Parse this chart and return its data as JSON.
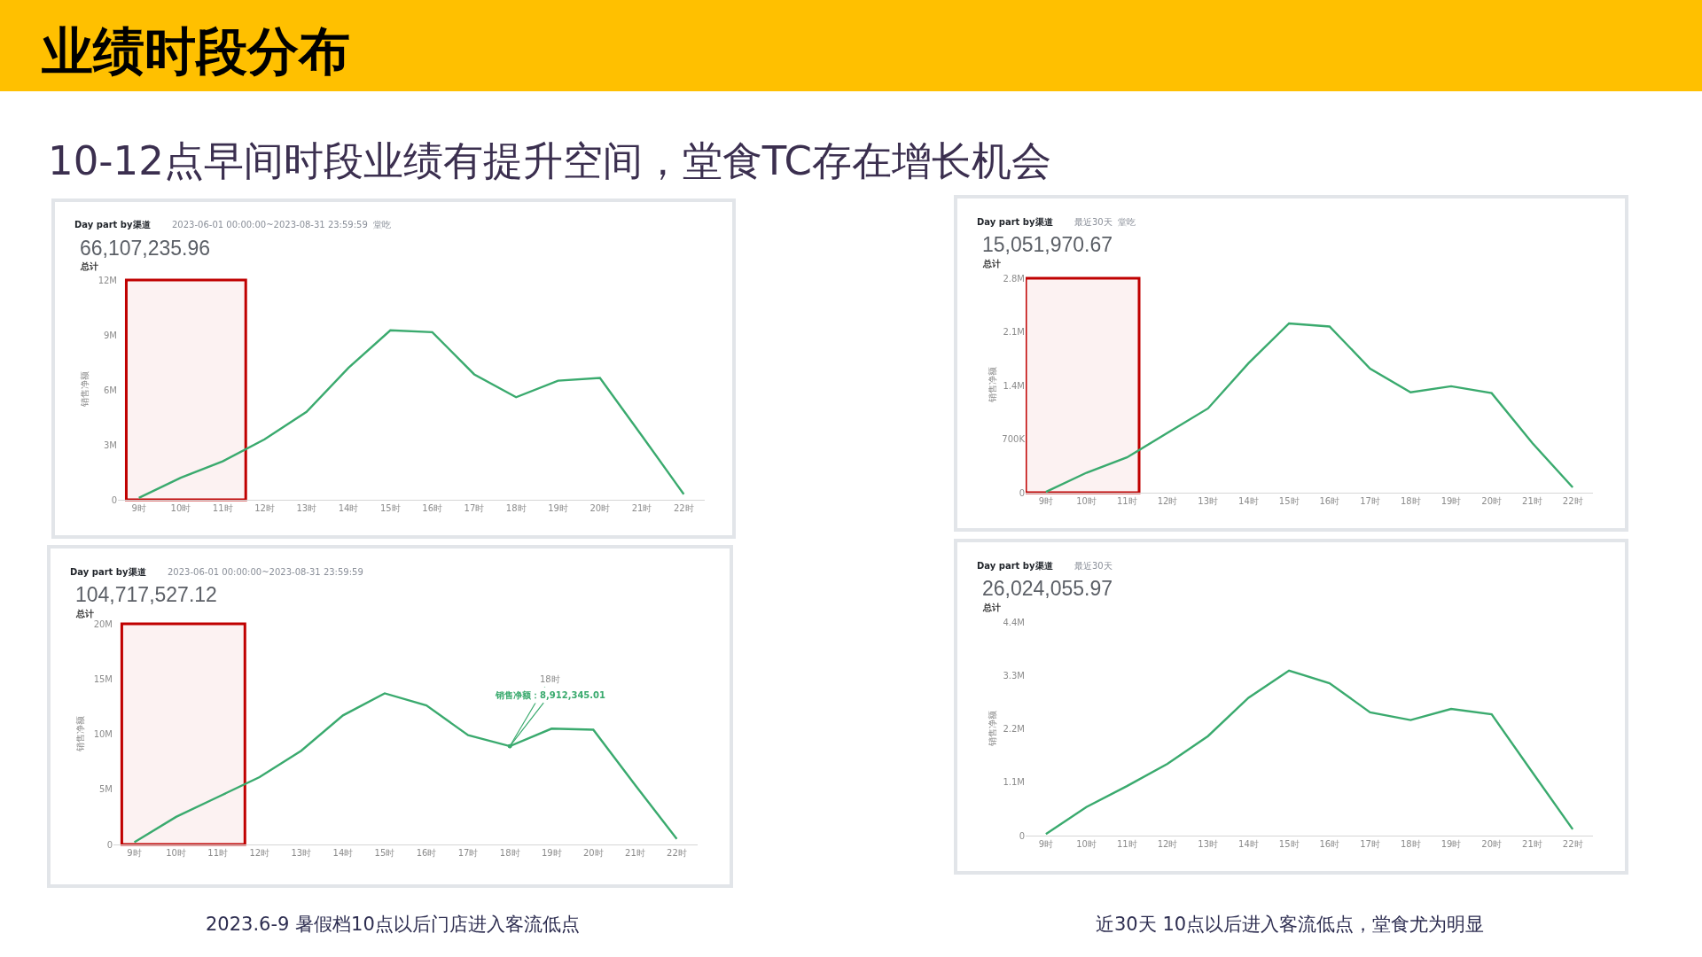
{
  "chart_data": [
    {
      "type": "line",
      "title": "Day part by渠道",
      "subtitle": "2023-06-01 00:00:00~2023-08-31 23:59:59  堂吃",
      "ylabel": "销售净额",
      "annotations": [
        "66,107,235.96",
        "总计",
        "业绩时段分布",
        "10-12点早间时段业绩有提升空间，堂食TC存在增长机会"
      ],
      "x": [
        9,
        10,
        11,
        12,
        13,
        14,
        15,
        16,
        17,
        18,
        19,
        20,
        21,
        22
      ],
      "xlim": [
        8.5,
        22.5
      ],
      "xticks": [
        {
          "value": 9,
          "label": "9时"
        },
        {
          "value": 10,
          "label": "10时"
        },
        {
          "value": 11,
          "label": "11时"
        },
        {
          "value": 12,
          "label": "12时"
        },
        {
          "value": 13,
          "label": "13时"
        },
        {
          "value": 14,
          "label": "14时"
        },
        {
          "value": 15,
          "label": "15时"
        },
        {
          "value": 16,
          "label": "16时"
        },
        {
          "value": 17,
          "label": "17时"
        },
        {
          "value": 18,
          "label": "18时"
        },
        {
          "value": 19,
          "label": "19时"
        },
        {
          "value": 20,
          "label": "20时"
        },
        {
          "value": 21,
          "label": "21时"
        },
        {
          "value": 22,
          "label": "22时"
        }
      ],
      "series": [
        {
          "color": "#3aaa6e",
          "values": [
            100000,
            1200000,
            2100000,
            3300000,
            4800000,
            7200000,
            9250000,
            9150000,
            6850000,
            5600000,
            6500000,
            6650000,
            3500000,
            300000
          ]
        }
      ],
      "ylim": [
        0,
        12000000
      ],
      "yticks": [
        0,
        {
          "value": 3000000,
          "label": "3M"
        },
        {
          "value": 6000000,
          "label": "6M"
        },
        {
          "value": 9000000,
          "label": "9M"
        },
        {
          "value": 12000000,
          "label": "12M"
        }
      ],
      "bands": [
        {
          "axis": "x",
          "from": 8.7,
          "to": 11.55,
          "color": "#c00000"
        }
      ]
    },
    {
      "type": "line",
      "title": "Day part by渠道",
      "subtitle": "最近30天  堂吃",
      "ylabel": "销售净额",
      "annotations": [
        "15,051,970.67",
        "总计"
      ],
      "x": [
        9,
        10,
        11,
        12,
        13,
        14,
        15,
        16,
        17,
        18,
        19,
        20,
        21,
        22
      ],
      "xlim": [
        8.5,
        22.5
      ],
      "xticks": [
        {
          "value": 9,
          "label": "9时"
        },
        {
          "value": 10,
          "label": "10时"
        },
        {
          "value": 11,
          "label": "11时"
        },
        {
          "value": 12,
          "label": "12时"
        },
        {
          "value": 13,
          "label": "13时"
        },
        {
          "value": 14,
          "label": "14时"
        },
        {
          "value": 15,
          "label": "15时"
        },
        {
          "value": 16,
          "label": "16时"
        },
        {
          "value": 17,
          "label": "17时"
        },
        {
          "value": 18,
          "label": "18时"
        },
        {
          "value": 19,
          "label": "19时"
        },
        {
          "value": 20,
          "label": "20时"
        },
        {
          "value": 21,
          "label": "21时"
        },
        {
          "value": 22,
          "label": "22时"
        }
      ],
      "series": [
        {
          "color": "#3aaa6e",
          "values": [
            10000,
            260000,
            460000,
            780000,
            1100000,
            1690000,
            2210000,
            2170000,
            1620000,
            1310000,
            1390000,
            1300000,
            650000,
            70000
          ]
        }
      ],
      "ylim": [
        0,
        2800000
      ],
      "yticks": [
        0,
        {
          "value": 700000,
          "label": "700K"
        },
        {
          "value": 1400000,
          "label": "1.4M"
        },
        {
          "value": 2100000,
          "label": "2.1M"
        },
        {
          "value": 2800000,
          "label": "2.8M"
        }
      ],
      "bands": [
        {
          "axis": "x",
          "from": 8.5,
          "to": 11.3,
          "color": "#c00000"
        }
      ]
    },
    {
      "type": "line",
      "title": "Day part by渠道",
      "subtitle": "2023-06-01 00:00:00~2023-08-31 23:59:59",
      "ylabel": "销售净额",
      "annotations": [
        "104,717,527.12",
        "总计",
        {
          "text": "18时",
          "x": 18,
          "y": 8912345.01
        },
        {
          "text": "销售净额：8,912,345.01",
          "x": 18,
          "y": 8912345.01
        },
        "2023.6-9 暑假档10点以后门店进入客流低点"
      ],
      "x": [
        9,
        10,
        11,
        12,
        13,
        14,
        15,
        16,
        17,
        18,
        19,
        20,
        21,
        22
      ],
      "xlim": [
        8.5,
        22.5
      ],
      "xticks": [
        {
          "value": 9,
          "label": "9时"
        },
        {
          "value": 10,
          "label": "10时"
        },
        {
          "value": 11,
          "label": "11时"
        },
        {
          "value": 12,
          "label": "12时"
        },
        {
          "value": 13,
          "label": "13时"
        },
        {
          "value": 14,
          "label": "14时"
        },
        {
          "value": 15,
          "label": "15时"
        },
        {
          "value": 16,
          "label": "16时"
        },
        {
          "value": 17,
          "label": "17时"
        },
        {
          "value": 18,
          "label": "18时"
        },
        {
          "value": 19,
          "label": "19时"
        },
        {
          "value": 20,
          "label": "20时"
        },
        {
          "value": 21,
          "label": "21时"
        },
        {
          "value": 22,
          "label": "22时"
        }
      ],
      "series": [
        {
          "color": "#3aaa6e",
          "values": [
            200000,
            2500000,
            4300000,
            6100000,
            8500000,
            11700000,
            13700000,
            12600000,
            9900000,
            8912345.01,
            10500000,
            10400000,
            5400000,
            500000
          ]
        }
      ],
      "ylim": [
        0,
        20000000
      ],
      "yticks": [
        0,
        {
          "value": 5000000,
          "label": "5M"
        },
        {
          "value": 10000000,
          "label": "10M"
        },
        {
          "value": 15000000,
          "label": "15M"
        },
        {
          "value": 20000000,
          "label": "20M"
        }
      ],
      "bands": [
        {
          "axis": "x",
          "from": 8.7,
          "to": 11.65,
          "color": "#c00000"
        }
      ]
    },
    {
      "type": "line",
      "title": "Day part by渠道",
      "subtitle": "最近30天",
      "ylabel": "销售净额",
      "annotations": [
        "26,024,055.97",
        "总计",
        "近30天 10点以后进入客流低点，堂食尤为明显"
      ],
      "x": [
        9,
        10,
        11,
        12,
        13,
        14,
        15,
        16,
        17,
        18,
        19,
        20,
        21,
        22
      ],
      "xlim": [
        8.5,
        22.5
      ],
      "xticks": [
        {
          "value": 9,
          "label": "9时"
        },
        {
          "value": 10,
          "label": "10时"
        },
        {
          "value": 11,
          "label": "11时"
        },
        {
          "value": 12,
          "label": "12时"
        },
        {
          "value": 13,
          "label": "13时"
        },
        {
          "value": 14,
          "label": "14时"
        },
        {
          "value": 15,
          "label": "15时"
        },
        {
          "value": 16,
          "label": "16时"
        },
        {
          "value": 17,
          "label": "17时"
        },
        {
          "value": 18,
          "label": "18时"
        },
        {
          "value": 19,
          "label": "19时"
        },
        {
          "value": 20,
          "label": "20时"
        },
        {
          "value": 21,
          "label": "21时"
        },
        {
          "value": 22,
          "label": "22时"
        }
      ],
      "series": [
        {
          "color": "#3aaa6e",
          "values": [
            30000,
            590000,
            1020000,
            1480000,
            2050000,
            2840000,
            3400000,
            3140000,
            2540000,
            2380000,
            2610000,
            2500000,
            1310000,
            130000
          ]
        }
      ],
      "ylim": [
        0,
        4400000
      ],
      "yticks": [
        0,
        {
          "value": 1100000,
          "label": "1.1M"
        },
        {
          "value": 2200000,
          "label": "2.2M"
        },
        {
          "value": 3300000,
          "label": "3.3M"
        },
        {
          "value": 4400000,
          "label": "4.4M"
        }
      ]
    }
  ]
}
